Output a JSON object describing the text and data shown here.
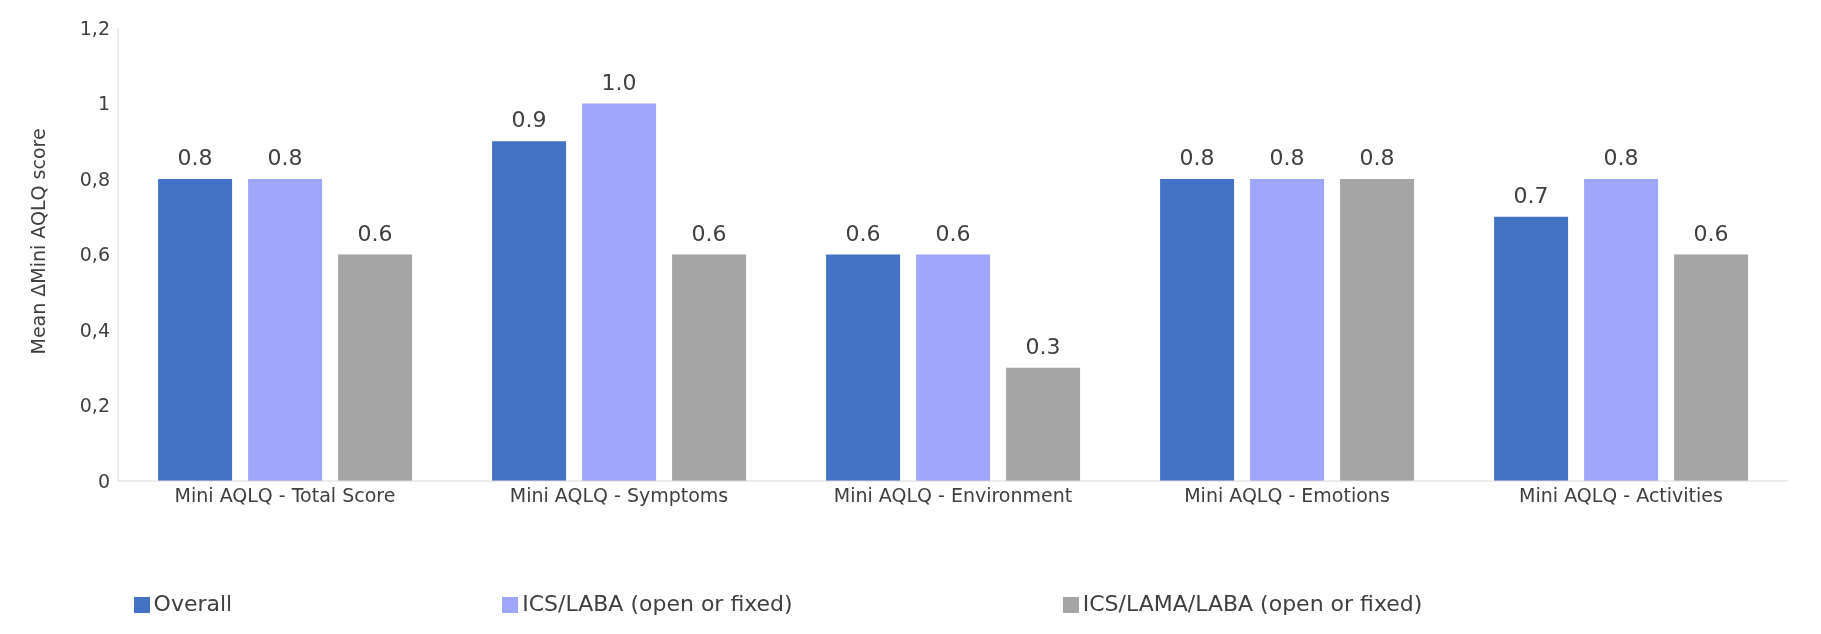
{
  "chart_data": {
    "type": "bar",
    "ylabel": "Mean ΔMini AQLQ score",
    "categories": [
      "Mini AQLQ - Total Score",
      "Mini AQLQ - Symptoms",
      "Mini AQLQ - Environment",
      "Mini AQLQ - Emotions",
      "Mini AQLQ - Activities"
    ],
    "series": [
      {
        "name": "Overall",
        "color": "#4472c4",
        "values": [
          0.8,
          0.9,
          0.6,
          0.8,
          0.7
        ],
        "value_labels": [
          "0.8",
          "0.9",
          "0.6",
          "0.8",
          "0.7"
        ]
      },
      {
        "name": "ICS/LABA (open or fixed)",
        "color": "#a0a6fa",
        "values": [
          0.8,
          1.0,
          0.6,
          0.8,
          0.8
        ],
        "value_labels": [
          "0.8",
          "1.0",
          "0.6",
          "0.8",
          "0.8"
        ]
      },
      {
        "name": "ICS/LAMA/LABA (open or fixed)",
        "color": "#a5a5a5",
        "values": [
          0.6,
          0.6,
          0.3,
          0.8,
          0.6
        ],
        "value_labels": [
          "0.6",
          "0.6",
          "0.3",
          "0.8",
          "0.6"
        ]
      }
    ],
    "ylim": [
      0,
      1.2
    ],
    "yticks": [
      0,
      {
        "value": 0.2,
        "label": "0,2"
      },
      {
        "value": 0.4,
        "label": "0,4"
      },
      {
        "value": 0.6,
        "label": "0,6"
      },
      {
        "value": 0.8,
        "label": "0,8"
      },
      1,
      {
        "value": 1.2,
        "label": "1,2"
      }
    ],
    "grid": false,
    "legend": "bottom"
  }
}
